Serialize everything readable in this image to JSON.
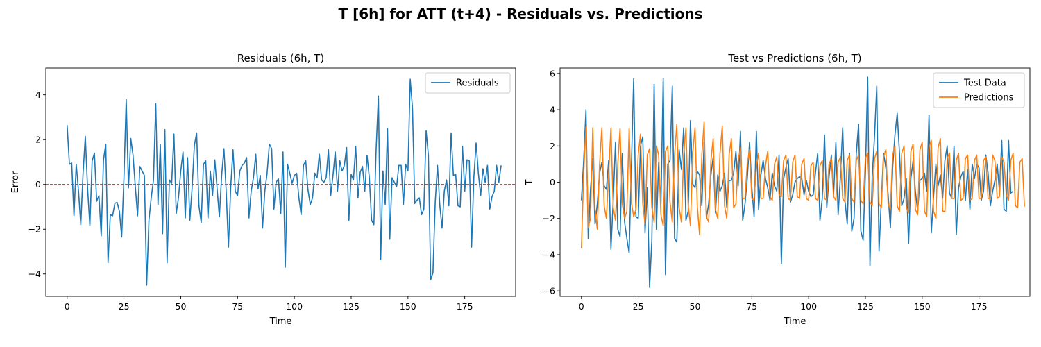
{
  "figure": {
    "title": "T [6h] for ATT (t+4) - Residuals vs. Predictions"
  },
  "chart_data": [
    {
      "type": "line",
      "title": "Residuals (6h, T)",
      "xlabel": "Time",
      "ylabel": "Error",
      "xlim": [
        -9.4,
        197.4
      ],
      "ylim": [
        -5.0,
        5.2
      ],
      "xticks": [
        0,
        25,
        50,
        75,
        100,
        125,
        150,
        175
      ],
      "yticks": [
        -4,
        -2,
        0,
        2,
        4
      ],
      "grid": false,
      "legend": "top-right",
      "reference_line": {
        "y": 0,
        "color": "#d62728",
        "style": "dashed"
      },
      "series": [
        {
          "name": "Residuals",
          "color": "#1f77b4",
          "values": [
            2.65,
            0.9,
            0.95,
            -1.4,
            0.9,
            -0.3,
            -1.8,
            0.5,
            2.15,
            -0.2,
            -1.85,
            1.05,
            1.4,
            -0.75,
            -0.5,
            -2.3,
            1.1,
            1.8,
            -3.5,
            -1.35,
            -1.4,
            -0.85,
            -0.8,
            -1.2,
            -2.35,
            0.3,
            3.8,
            -0.15,
            2.05,
            1.3,
            -0.1,
            -1.4,
            0.8,
            0.6,
            0.4,
            -4.5,
            -1.6,
            -0.6,
            0.2,
            3.6,
            -0.9,
            1.8,
            -2.2,
            2.45,
            -3.5,
            0.2,
            0.05,
            2.25,
            -1.3,
            -0.6,
            0.6,
            1.45,
            -1.5,
            1.2,
            -1.6,
            -0.15,
            1.75,
            2.3,
            -0.95,
            -1.7,
            0.9,
            1.05,
            -1.5,
            0.6,
            -0.5,
            1.1,
            -0.2,
            -1.45,
            0.4,
            1.6,
            -0.3,
            -2.8,
            -0.1,
            1.55,
            -0.3,
            -0.5,
            0.6,
            0.85,
            0.95,
            1.2,
            -1.5,
            -0.3,
            0.3,
            1.35,
            -0.2,
            0.4,
            -1.95,
            -0.3,
            0.5,
            1.8,
            1.6,
            -1.1,
            0.1,
            0.25,
            -1.3,
            1.45,
            -3.7,
            0.9,
            0.5,
            0.05,
            0.4,
            0.5,
            -0.6,
            -1.35,
            0.85,
            1.05,
            -0.25,
            -0.9,
            -0.6,
            0.5,
            0.3,
            1.35,
            0.2,
            0.1,
            0.3,
            1.55,
            -0.5,
            0.4,
            1.45,
            -0.3,
            1.05,
            0.6,
            0.85,
            1.65,
            -1.6,
            0.45,
            0.2,
            1.7,
            -0.6,
            0.55,
            0.8,
            -0.3,
            1.3,
            0.3,
            -1.6,
            -1.8,
            1.6,
            3.95,
            -3.35,
            0.6,
            -0.9,
            2.5,
            -2.45,
            0.3,
            0.1,
            -0.1,
            0.85,
            0.85,
            -0.9,
            0.9,
            0.6,
            4.7,
            3.4,
            -0.85,
            -0.7,
            -0.6,
            -1.35,
            -1.1,
            2.4,
            1.3,
            -4.25,
            -3.95,
            -0.8,
            0.85,
            -0.9,
            -1.95,
            -0.3,
            0.2,
            -0.95,
            2.3,
            0.4,
            0.45,
            -0.95,
            -1.0,
            1.7,
            -0.3,
            1.1,
            1.05,
            -2.8,
            0.3,
            1.85,
            0.5,
            -0.5,
            0.7,
            0.1,
            0.85,
            -1.1,
            -0.55,
            -0.3,
            0.85,
            0.1,
            0.85
          ]
        }
      ]
    },
    {
      "type": "line",
      "title": "Test vs Predictions (6h, T)",
      "xlabel": "Time",
      "ylabel": "T",
      "xlim": [
        -9.4,
        197.4
      ],
      "ylim": [
        -6.3,
        6.3
      ],
      "xticks": [
        0,
        25,
        50,
        75,
        100,
        125,
        150,
        175
      ],
      "yticks": [
        -6,
        -4,
        -2,
        0,
        2,
        4,
        6
      ],
      "grid": false,
      "legend": "top-right",
      "series": [
        {
          "name": "Test Data",
          "color": "#1f77b4",
          "values": [
            -1.0,
            1.2,
            4.0,
            -3.1,
            -0.4,
            1.3,
            -2.3,
            -1.2,
            0.5,
            1.1,
            -0.2,
            -0.4,
            1.2,
            -3.7,
            -1.0,
            2.2,
            -2.6,
            -3.0,
            1.6,
            -2.2,
            -3.1,
            -3.9,
            0.9,
            5.7,
            -1.9,
            -2.0,
            2.0,
            2.5,
            -2.8,
            -0.3,
            -5.8,
            -3.2,
            5.4,
            -2.6,
            1.1,
            -1.2,
            5.7,
            -5.1,
            1.0,
            1.2,
            5.3,
            -3.1,
            -3.3,
            1.8,
            0.7,
            3.0,
            -2.1,
            -1.6,
            3.4,
            -0.1,
            -0.3,
            0.6,
            0.4,
            -1.3,
            2.2,
            -2.0,
            -1.2,
            0.4,
            1.4,
            -1.7,
            0.4,
            -0.5,
            -0.2,
            0.5,
            -1.4,
            0.1,
            0.1,
            0.5,
            1.7,
            -0.2,
            2.8,
            -2.1,
            -1.2,
            0.2,
            2.2,
            -0.3,
            -1.9,
            2.8,
            -1.5,
            0.4,
            1.2,
            0.2,
            -0.3,
            -1.0,
            0.5,
            -0.2,
            -0.5,
            1.5,
            -4.5,
            0.2,
            0.8,
            1.3,
            -1.1,
            -0.7,
            0.0,
            0.2,
            0.3,
            0.2,
            -0.7,
            0.1,
            -0.5,
            -0.8,
            -0.7,
            0.5,
            1.6,
            -2.1,
            -0.9,
            2.6,
            -1.4,
            0.3,
            1.5,
            -0.7,
            2.2,
            -1.8,
            0.3,
            3.0,
            -1.0,
            -2.3,
            1.6,
            -2.7,
            -2.0,
            1.6,
            3.2,
            -2.7,
            -3.2,
            0.5,
            5.8,
            -4.6,
            0.3,
            2.5,
            5.3,
            -3.8,
            -1.0,
            1.6,
            0.8,
            -0.7,
            -2.5,
            0.8,
            2.6,
            3.8,
            1.6,
            -1.3,
            -0.9,
            0.2,
            -3.4,
            0.2,
            1.2,
            -0.5,
            -1.6,
            0.1,
            0.2,
            0.5,
            -0.5,
            3.7,
            -2.8,
            -0.8,
            1.0,
            -0.2,
            0.4,
            -0.9,
            1.2,
            2.0,
            -0.6,
            -0.9,
            2.0,
            -2.9,
            -0.3,
            0.3,
            0.6,
            -1.0,
            0.7,
            -1.5,
            1.0,
            0.2,
            1.0,
            0.8,
            -1.0,
            -0.5,
            1.5,
            0.5,
            -1.3,
            -0.5,
            0.1,
            1.0,
            -0.5,
            2.3,
            -1.5,
            -1.6,
            2.3,
            -0.6,
            -0.5
          ]
        },
        {
          "name": "Predictions",
          "color": "#ff7f0e",
          "values": [
            -3.65,
            0.5,
            3.05,
            -2.5,
            -2.0,
            3.0,
            -1.5,
            -2.6,
            1.0,
            3.0,
            -1.3,
            -2.0,
            0.5,
            3.0,
            -1.4,
            -2.1,
            1.0,
            2.95,
            -1.2,
            -2.0,
            -1.6,
            2.95,
            -1.1,
            -1.9,
            -1.5,
            1.5,
            2.65,
            -1.2,
            -2.3,
            1.5,
            1.85,
            -1.4,
            -2.2,
            2.0,
            1.5,
            -1.8,
            -2.4,
            1.7,
            2.0,
            -1.1,
            -2.2,
            1.5,
            3.2,
            -1.4,
            -2.2,
            1.5,
            3.0,
            -1.3,
            -2.4,
            1.6,
            3.0,
            -1.3,
            -2.9,
            1.5,
            3.3,
            -1.9,
            -2.2,
            1.2,
            2.4,
            -1.5,
            -2.0,
            1.6,
            3.1,
            -1.3,
            -2.0,
            1.5,
            2.4,
            -1.4,
            -1.2,
            1.2,
            1.9,
            -0.9,
            -0.9,
            1.0,
            1.8,
            -0.9,
            -1.0,
            0.9,
            1.6,
            -0.9,
            -0.9,
            0.9,
            1.7,
            -0.8,
            -1.0,
            1.0,
            1.4,
            -0.7,
            -0.8,
            1.2,
            1.5,
            -0.9,
            -1.0,
            1.1,
            1.5,
            -0.8,
            -0.9,
            1.0,
            1.3,
            -0.9,
            -1.0,
            0.9,
            1.1,
            -0.9,
            -1.0,
            0.9,
            1.2,
            -0.9,
            -1.0,
            1.0,
            1.3,
            -0.8,
            -1.0,
            1.1,
            1.4,
            -0.9,
            -1.1,
            1.2,
            1.5,
            -0.9,
            -1.1,
            1.2,
            1.5,
            -1.0,
            -1.2,
            1.3,
            1.6,
            -1.1,
            -1.3,
            1.3,
            1.7,
            -1.2,
            -1.4,
            1.4,
            1.8,
            -1.2,
            -1.5,
            1.5,
            2.0,
            -1.3,
            -1.6,
            1.6,
            2.0,
            -1.4,
            -1.7,
            1.7,
            2.1,
            -1.5,
            -1.8,
            1.8,
            2.2,
            -1.6,
            -1.9,
            1.9,
            2.3,
            -1.6,
            -2.0,
            1.9,
            2.4,
            -1.6,
            -1.6,
            1.3,
            1.6,
            -0.9,
            -0.9,
            1.2,
            1.6,
            -1.0,
            -0.9,
            1.3,
            1.5,
            -1.0,
            -0.9,
            1.2,
            1.5,
            -0.9,
            -0.9,
            1.2,
            1.4,
            -0.9,
            -0.9,
            1.5,
            1.2,
            -0.9,
            -0.8,
            1.4,
            1.1,
            -0.7,
            -1.0,
            1.2,
            1.6,
            -1.3,
            -1.4,
            1.1,
            1.3,
            -1.35
          ]
        }
      ]
    }
  ]
}
